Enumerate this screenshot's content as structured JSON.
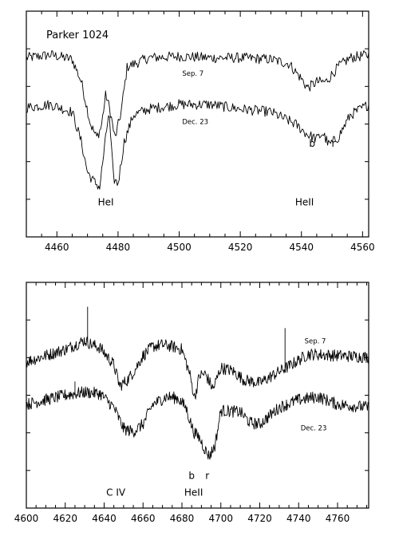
{
  "chart_data": [
    {
      "type": "line",
      "title": "Parker 1024",
      "xlim": [
        4450,
        4562
      ],
      "xticks": [
        4460,
        4480,
        4500,
        4520,
        4540,
        4560
      ],
      "series": [
        {
          "name": "Sep. 7",
          "x": [
            4450,
            4458,
            4465,
            4468,
            4471,
            4473,
            4474.5,
            4476,
            4477.5,
            4479,
            4481,
            4483,
            4490,
            4500,
            4510,
            4520,
            4530,
            4536,
            4540,
            4542,
            4545,
            4548,
            4552,
            4556,
            4562
          ],
          "y": [
            0.86,
            0.88,
            0.85,
            0.7,
            0.42,
            0.33,
            0.4,
            0.62,
            0.5,
            0.32,
            0.5,
            0.8,
            0.86,
            0.87,
            0.86,
            0.86,
            0.85,
            0.82,
            0.72,
            0.66,
            0.7,
            0.7,
            0.8,
            0.86,
            0.88
          ]
        },
        {
          "name": "Dec. 23",
          "x": [
            4450,
            4458,
            4465,
            4468,
            4470,
            4472,
            4474,
            4475.5,
            4477,
            4478.5,
            4480,
            4482,
            4485,
            4490,
            4500,
            4510,
            4520,
            4530,
            4538,
            4542,
            4545,
            4547,
            4549,
            4552,
            4556,
            4562
          ],
          "y": [
            0.53,
            0.55,
            0.5,
            0.3,
            0.1,
            0.04,
            0.0,
            0.25,
            0.5,
            0.06,
            0.02,
            0.3,
            0.48,
            0.52,
            0.55,
            0.55,
            0.52,
            0.5,
            0.42,
            0.35,
            0.32,
            0.36,
            0.28,
            0.33,
            0.48,
            0.55
          ]
        }
      ],
      "annotations": [
        {
          "text": "Sep. 7",
          "x": 4501,
          "y": 0.74
        },
        {
          "text": "Dec. 23",
          "x": 4501,
          "y": 0.42
        },
        {
          "text": "b",
          "x": 4543.5,
          "y": 0.27
        },
        {
          "text": "r",
          "x": 4550.5,
          "y": 0.27
        },
        {
          "text": "HeI",
          "x": 4476,
          "y": -0.12
        },
        {
          "text": "HeII",
          "x": 4541,
          "y": -0.12
        }
      ]
    },
    {
      "type": "line",
      "xlim": [
        4600,
        4776
      ],
      "xticks": [
        4600,
        4620,
        4640,
        4660,
        4680,
        4700,
        4720,
        4740,
        4760
      ],
      "series": [
        {
          "name": "Sep. 7",
          "x": [
            4600,
            4610,
            4620,
            4630,
            4634,
            4638,
            4645,
            4648,
            4652,
            4656,
            4660,
            4665,
            4670,
            4675,
            4680,
            4684,
            4686.5,
            4689,
            4692,
            4696,
            4700,
            4706,
            4712,
            4720,
            4728,
            4735,
            4745,
            4760,
            4776
          ],
          "y": [
            0.88,
            0.92,
            0.96,
            1.02,
            0.99,
            0.97,
            0.86,
            0.72,
            0.76,
            0.83,
            0.92,
            0.98,
            0.99,
            0.98,
            0.96,
            0.8,
            0.64,
            0.79,
            0.8,
            0.7,
            0.84,
            0.82,
            0.76,
            0.74,
            0.8,
            0.85,
            0.93,
            0.92,
            0.91
          ]
        },
        {
          "name": "Dec. 23",
          "x": [
            4600,
            4610,
            4620,
            4630,
            4638,
            4645,
            4650,
            4655,
            4660,
            4665,
            4672,
            4678,
            4682,
            4686,
            4689,
            4692,
            4694,
            4697,
            4700,
            4710,
            4715,
            4720,
            4730,
            4740,
            4750,
            4760,
            4776
          ],
          "y": [
            0.6,
            0.63,
            0.66,
            0.68,
            0.67,
            0.58,
            0.44,
            0.42,
            0.47,
            0.6,
            0.65,
            0.64,
            0.58,
            0.42,
            0.38,
            0.3,
            0.26,
            0.33,
            0.56,
            0.55,
            0.48,
            0.47,
            0.58,
            0.63,
            0.65,
            0.6,
            0.58
          ]
        }
      ],
      "spikes": [
        {
          "series": 0,
          "x": 4631.5,
          "y": 1.24
        },
        {
          "series": 0,
          "x": 4733,
          "y": 1.1
        },
        {
          "series": 1,
          "x": 4625,
          "y": 0.75
        },
        {
          "series": 1,
          "x": 4685.5,
          "y": 0.44
        }
      ],
      "annotations": [
        {
          "text": "Sep. 7",
          "x": 4743,
          "y": 1.0
        },
        {
          "text": "Dec. 23",
          "x": 4741,
          "y": 0.43
        },
        {
          "text": "b",
          "x": 4685,
          "y": 0.11
        },
        {
          "text": "r",
          "x": 4693,
          "y": 0.11
        },
        {
          "text": "C IV",
          "x": 4646,
          "y": 0.0
        },
        {
          "text": "HeII",
          "x": 4686,
          "y": 0.0
        }
      ]
    }
  ]
}
